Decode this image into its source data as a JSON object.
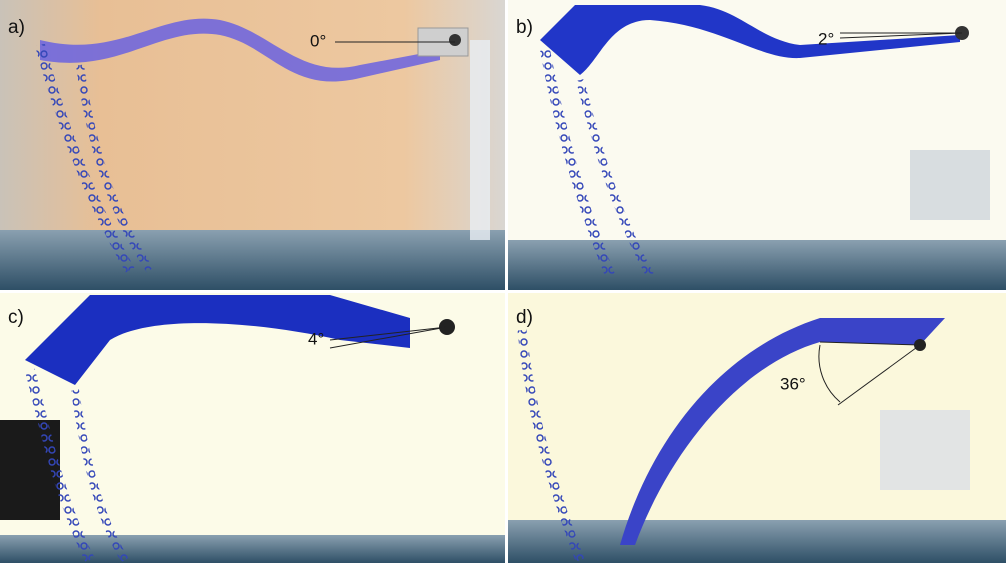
{
  "panels": [
    {
      "label": "a)",
      "angle": "0°"
    },
    {
      "label": "b)",
      "angle": "2°"
    },
    {
      "label": "c)",
      "angle": "4°"
    },
    {
      "label": "d)",
      "angle": "36°"
    }
  ]
}
